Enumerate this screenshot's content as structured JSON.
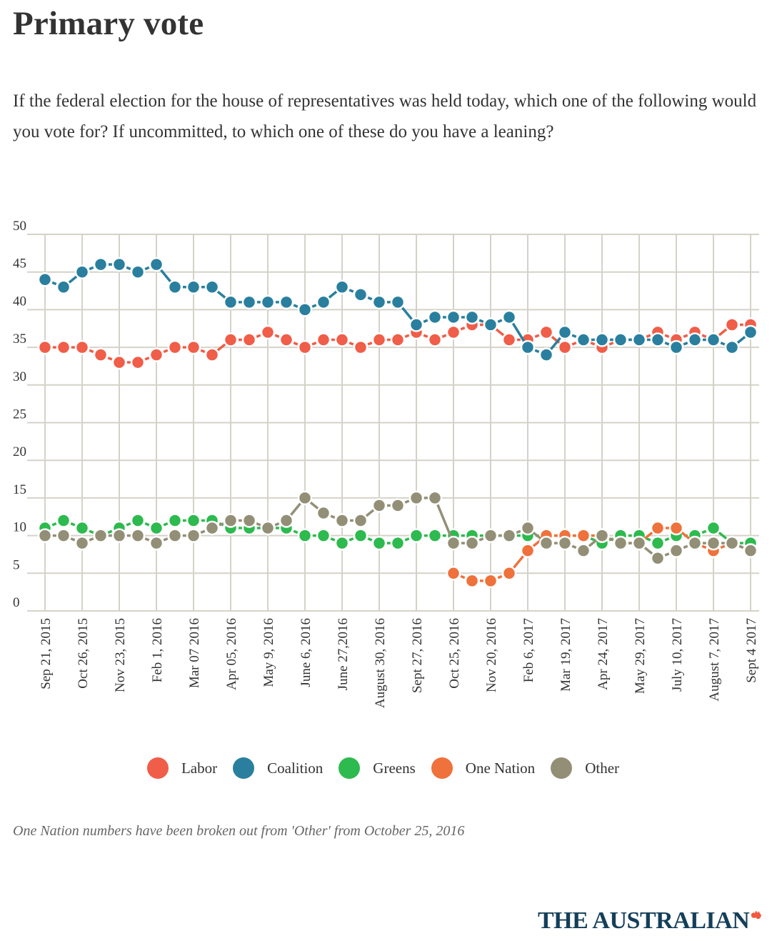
{
  "header": {
    "title": "Primary vote",
    "subtitle": "If the federal election for the house of representatives was held today, which one of the following would you vote for? If uncommitted, to which one of these do you have a leaning?"
  },
  "footnote": "One Nation numbers have been broken out from 'Other' from October 25, 2016",
  "brand": {
    "name": "THE AUSTRALIAN",
    "icon": "australia-map-icon",
    "color": "#143f5a",
    "icon_color": "#f05a40"
  },
  "chart_data": {
    "type": "line",
    "title": "Primary vote",
    "xlabel": "",
    "ylabel": "",
    "ylim": [
      0,
      50
    ],
    "yticks": [
      0,
      5,
      10,
      15,
      20,
      25,
      30,
      35,
      40,
      45,
      50
    ],
    "grid": true,
    "legend": "bottom-center",
    "x_tick_labels": [
      "Sep 21, 2015",
      "Oct 26, 2015",
      "Nov 23, 2015",
      "Feb 1, 2016",
      "Mar 07 2016",
      "Apr 05, 2016",
      "May 9, 2016",
      "June 6, 2016",
      "June 27,2016",
      "August 30, 2016",
      "Sept 27, 2016",
      "Oct 25, 2016",
      "Nov 20, 2016",
      "Feb 6, 2017",
      "Mar 19, 2017",
      "Apr 24, 2017",
      "May 29, 2017",
      "July 10, 2017",
      "August 7, 2017",
      "Sept 4 2017"
    ],
    "x_tick_every": 2,
    "n_points": 39,
    "series": [
      {
        "name": "Labor",
        "color": "#f05d48",
        "values": [
          35,
          35,
          35,
          34,
          33,
          33,
          34,
          35,
          35,
          34,
          36,
          36,
          37,
          36,
          35,
          36,
          36,
          35,
          36,
          36,
          37,
          36,
          37,
          38,
          38,
          36,
          36,
          37,
          35,
          36,
          35,
          36,
          36,
          37,
          36,
          37,
          36,
          38,
          38
        ]
      },
      {
        "name": "Coalition",
        "color": "#2a7f9e",
        "values": [
          44,
          43,
          45,
          46,
          46,
          45,
          46,
          43,
          43,
          43,
          41,
          41,
          41,
          41,
          40,
          41,
          43,
          42,
          41,
          41,
          38,
          39,
          39,
          39,
          38,
          39,
          35,
          34,
          37,
          36,
          36,
          36,
          36,
          36,
          35,
          36,
          36,
          35,
          37
        ]
      },
      {
        "name": "Greens",
        "color": "#2dba4e",
        "values": [
          11,
          12,
          11,
          10,
          11,
          12,
          11,
          12,
          12,
          12,
          11,
          11,
          11,
          11,
          10,
          10,
          9,
          10,
          9,
          9,
          10,
          10,
          10,
          10,
          10,
          10,
          10,
          10,
          10,
          10,
          9,
          10,
          10,
          9,
          10,
          10,
          11,
          9,
          9
        ]
      },
      {
        "name": "One Nation",
        "color": "#ef713b",
        "values": [
          null,
          null,
          null,
          null,
          null,
          null,
          null,
          null,
          null,
          null,
          null,
          null,
          null,
          null,
          null,
          null,
          null,
          null,
          null,
          null,
          null,
          null,
          5,
          4,
          4,
          5,
          8,
          10,
          10,
          10,
          10,
          9,
          9,
          11,
          11,
          9,
          8,
          9,
          8
        ]
      },
      {
        "name": "Other",
        "color": "#938f77",
        "values": [
          10,
          10,
          9,
          10,
          10,
          10,
          9,
          10,
          10,
          11,
          12,
          12,
          11,
          12,
          15,
          13,
          12,
          12,
          14,
          14,
          15,
          15,
          9,
          9,
          10,
          10,
          11,
          9,
          9,
          8,
          10,
          9,
          9,
          7,
          8,
          9,
          9,
          9,
          8
        ]
      }
    ]
  }
}
